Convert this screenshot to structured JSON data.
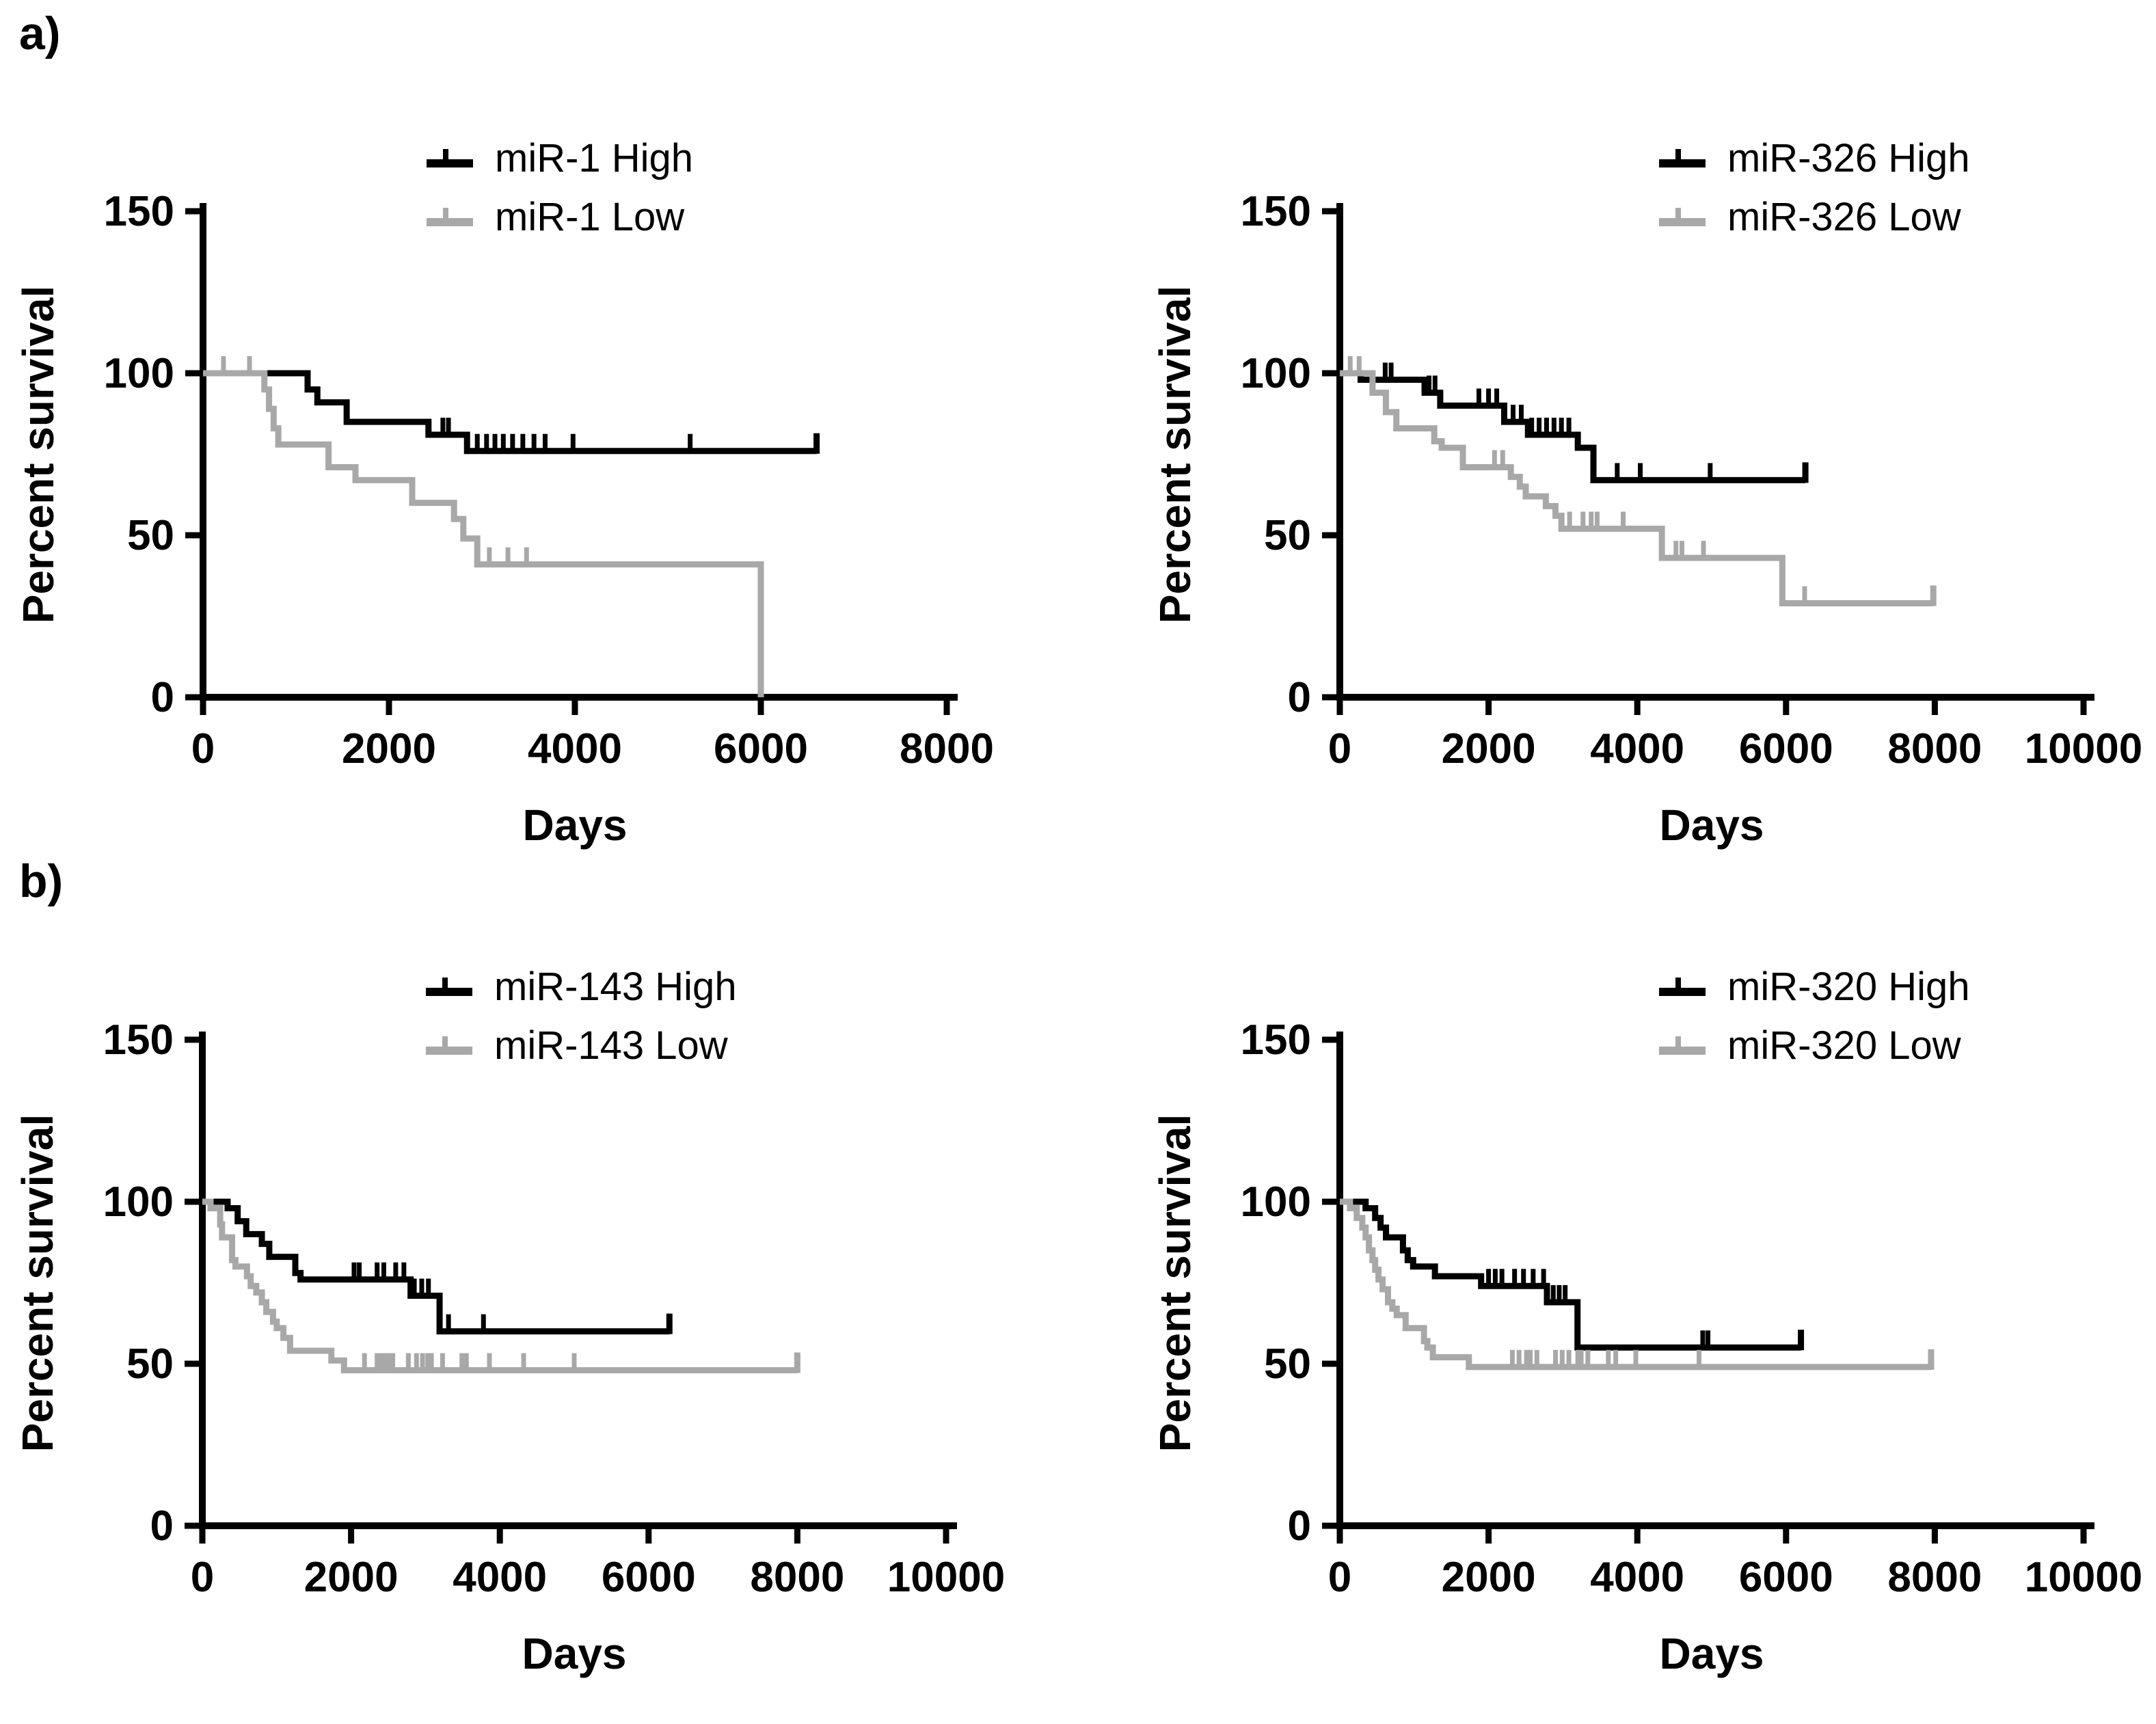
{
  "figure": {
    "panel_a_label": "a)",
    "panel_b_label": "b)",
    "background_color": "#ffffff",
    "high_color": "#000000",
    "low_color": "#a8a8a8"
  },
  "chart_data": [
    {
      "type": "line",
      "subtype": "kaplan-meier-step",
      "panel": "a",
      "xlabel": "Days",
      "ylabel": "Percent survival",
      "xlim": [
        0,
        8000
      ],
      "ylim": [
        0,
        150
      ],
      "xticks": [
        0,
        2000,
        4000,
        6000,
        8000
      ],
      "yticks": [
        0,
        50,
        100,
        150
      ],
      "grid": false,
      "legend_position": "top-right",
      "series": [
        {
          "name": "miR-1 High",
          "color": "#000000",
          "steps": [
            [
              0,
              100
            ],
            [
              1125,
              95
            ],
            [
              1230,
              91
            ],
            [
              1545,
              85
            ],
            [
              2425,
              81
            ],
            [
              2840,
              76
            ]
          ],
          "end": 6600,
          "terminal_censor": true,
          "censors": [
            [
              2580,
              81
            ],
            [
              2640,
              81
            ],
            [
              2950,
              76
            ],
            [
              3050,
              76
            ],
            [
              3140,
              76
            ],
            [
              3230,
              76
            ],
            [
              3330,
              76
            ],
            [
              3440,
              76
            ],
            [
              3560,
              76
            ],
            [
              3680,
              76
            ],
            [
              3980,
              76
            ],
            [
              5240,
              76
            ]
          ]
        },
        {
          "name": "miR-1 Low",
          "color": "#a8a8a8",
          "steps": [
            [
              0,
              100
            ],
            [
              660,
              95
            ],
            [
              710,
              89
            ],
            [
              760,
              83
            ],
            [
              810,
              78
            ],
            [
              1350,
              71
            ],
            [
              1640,
              67
            ],
            [
              2250,
              60
            ],
            [
              2700,
              55
            ],
            [
              2800,
              49
            ],
            [
              2950,
              41
            ],
            [
              6000,
              0
            ]
          ],
          "end": 6000,
          "terminal_censor": false,
          "censors": [
            [
              220,
              100
            ],
            [
              500,
              100
            ],
            [
              3080,
              41
            ],
            [
              3280,
              41
            ],
            [
              3480,
              41
            ]
          ]
        }
      ]
    },
    {
      "type": "line",
      "subtype": "kaplan-meier-step",
      "panel": "a",
      "xlabel": "Days",
      "ylabel": "Percent survival",
      "xlim": [
        0,
        10000
      ],
      "ylim": [
        0,
        150
      ],
      "xticks": [
        0,
        2000,
        4000,
        6000,
        8000,
        10000
      ],
      "yticks": [
        0,
        50,
        100,
        150
      ],
      "grid": false,
      "legend_position": "top-right",
      "series": [
        {
          "name": "miR-326 High",
          "color": "#000000",
          "steps": [
            [
              0,
              100
            ],
            [
              280,
              98
            ],
            [
              1140,
              94
            ],
            [
              1350,
              90
            ],
            [
              2210,
              85
            ],
            [
              2530,
              81
            ],
            [
              3200,
              77
            ],
            [
              3410,
              67
            ]
          ],
          "end": 6260,
          "terminal_censor": true,
          "censors": [
            [
              610,
              98
            ],
            [
              690,
              98
            ],
            [
              1200,
              94
            ],
            [
              1280,
              94
            ],
            [
              1870,
              90
            ],
            [
              2000,
              90
            ],
            [
              2110,
              90
            ],
            [
              2330,
              85
            ],
            [
              2440,
              85
            ],
            [
              2580,
              81
            ],
            [
              2680,
              81
            ],
            [
              2780,
              81
            ],
            [
              2880,
              81
            ],
            [
              2980,
              81
            ],
            [
              3080,
              81
            ],
            [
              3730,
              67
            ],
            [
              4040,
              67
            ],
            [
              4980,
              67
            ]
          ]
        },
        {
          "name": "miR-326 Low",
          "color": "#a8a8a8",
          "steps": [
            [
              0,
              100
            ],
            [
              440,
              94
            ],
            [
              620,
              88
            ],
            [
              760,
              83
            ],
            [
              1270,
              79
            ],
            [
              1370,
              77
            ],
            [
              1655,
              71
            ],
            [
              2300,
              68
            ],
            [
              2420,
              65
            ],
            [
              2500,
              62
            ],
            [
              2770,
              59
            ],
            [
              2900,
              56
            ],
            [
              2980,
              52
            ],
            [
              4330,
              43
            ],
            [
              5950,
              29
            ]
          ],
          "end": 7980,
          "terminal_censor": true,
          "censors": [
            [
              140,
              100
            ],
            [
              260,
              100
            ],
            [
              2080,
              71
            ],
            [
              2190,
              71
            ],
            [
              3090,
              52
            ],
            [
              3270,
              52
            ],
            [
              3380,
              52
            ],
            [
              3460,
              52
            ],
            [
              3810,
              52
            ],
            [
              4520,
              43
            ],
            [
              4600,
              43
            ],
            [
              4890,
              43
            ],
            [
              6250,
              29
            ]
          ]
        }
      ]
    },
    {
      "type": "line",
      "subtype": "kaplan-meier-step",
      "panel": "b",
      "xlabel": "Days",
      "ylabel": "Percent survival",
      "xlim": [
        0,
        10000
      ],
      "ylim": [
        0,
        150
      ],
      "xticks": [
        0,
        2000,
        4000,
        6000,
        8000,
        10000
      ],
      "yticks": [
        0,
        50,
        100,
        150
      ],
      "grid": false,
      "legend_position": "top-right",
      "series": [
        {
          "name": "miR-143 High",
          "color": "#000000",
          "steps": [
            [
              0,
              100
            ],
            [
              340,
              98
            ],
            [
              475,
              94
            ],
            [
              590,
              90
            ],
            [
              800,
              87
            ],
            [
              900,
              83
            ],
            [
              1250,
              78
            ],
            [
              1320,
              76
            ],
            [
              2800,
              71
            ],
            [
              3190,
              60
            ]
          ],
          "end": 6280,
          "terminal_censor": true,
          "censors": [
            [
              2040,
              76
            ],
            [
              2110,
              76
            ],
            [
              2350,
              76
            ],
            [
              2440,
              76
            ],
            [
              2600,
              76
            ],
            [
              2710,
              76
            ],
            [
              2850,
              71
            ],
            [
              2950,
              71
            ],
            [
              3040,
              71
            ],
            [
              3310,
              60
            ],
            [
              3780,
              60
            ]
          ]
        },
        {
          "name": "miR-143 Low",
          "color": "#a8a8a8",
          "steps": [
            [
              0,
              100
            ],
            [
              110,
              98
            ],
            [
              240,
              93
            ],
            [
              265,
              89
            ],
            [
              400,
              82
            ],
            [
              445,
              80
            ],
            [
              600,
              77
            ],
            [
              650,
              74
            ],
            [
              725,
              72
            ],
            [
              800,
              69
            ],
            [
              860,
              66
            ],
            [
              950,
              63
            ],
            [
              1000,
              61
            ],
            [
              1090,
              58
            ],
            [
              1180,
              54
            ],
            [
              1735,
              51
            ],
            [
              1905,
              48
            ]
          ],
          "end": 8000,
          "terminal_censor": true,
          "censors": [
            [
              2180,
              48
            ],
            [
              2350,
              48
            ],
            [
              2400,
              48
            ],
            [
              2460,
              48
            ],
            [
              2510,
              48
            ],
            [
              2560,
              48
            ],
            [
              2770,
              48
            ],
            [
              2880,
              48
            ],
            [
              2960,
              48
            ],
            [
              3030,
              48
            ],
            [
              3080,
              48
            ],
            [
              3230,
              48
            ],
            [
              3490,
              48
            ],
            [
              3550,
              48
            ],
            [
              3860,
              48
            ],
            [
              4320,
              48
            ],
            [
              5000,
              48
            ]
          ]
        }
      ]
    },
    {
      "type": "line",
      "subtype": "kaplan-meier-step",
      "panel": "b",
      "xlabel": "Days",
      "ylabel": "Percent survival",
      "xlim": [
        0,
        10000
      ],
      "ylim": [
        0,
        150
      ],
      "xticks": [
        0,
        2000,
        4000,
        6000,
        8000,
        10000
      ],
      "yticks": [
        0,
        50,
        100,
        150
      ],
      "grid": false,
      "legend_position": "top-right",
      "series": [
        {
          "name": "miR-320 High",
          "color": "#000000",
          "steps": [
            [
              0,
              100
            ],
            [
              347,
              98
            ],
            [
              475,
              95
            ],
            [
              548,
              92
            ],
            [
              621,
              89
            ],
            [
              849,
              85
            ],
            [
              913,
              82
            ],
            [
              986,
              80
            ],
            [
              1279,
              77
            ],
            [
              1900,
              74
            ],
            [
              2785,
              69
            ],
            [
              3196,
              55
            ]
          ],
          "end": 6200,
          "terminal_censor": true,
          "censors": [
            [
              2000,
              74
            ],
            [
              2090,
              74
            ],
            [
              2180,
              74
            ],
            [
              2350,
              74
            ],
            [
              2470,
              74
            ],
            [
              2600,
              74
            ],
            [
              2740,
              74
            ],
            [
              2870,
              69
            ],
            [
              2950,
              69
            ],
            [
              3030,
              69
            ],
            [
              4880,
              55
            ],
            [
              4950,
              55
            ]
          ]
        },
        {
          "name": "miR-320 Low",
          "color": "#a8a8a8",
          "steps": [
            [
              0,
              100
            ],
            [
              137,
              98
            ],
            [
              228,
              95
            ],
            [
              302,
              92
            ],
            [
              347,
              89
            ],
            [
              392,
              85
            ],
            [
              439,
              82
            ],
            [
              475,
              79
            ],
            [
              520,
              76
            ],
            [
              575,
              73
            ],
            [
              648,
              69
            ],
            [
              706,
              67
            ],
            [
              765,
              65
            ],
            [
              885,
              61
            ],
            [
              1132,
              57
            ],
            [
              1177,
              55
            ],
            [
              1251,
              52
            ],
            [
              1735,
              49
            ]
          ],
          "end": 7950,
          "terminal_censor": true,
          "censors": [
            [
              2320,
              49
            ],
            [
              2410,
              49
            ],
            [
              2510,
              49
            ],
            [
              2560,
              49
            ],
            [
              2650,
              49
            ],
            [
              2900,
              49
            ],
            [
              2990,
              49
            ],
            [
              3080,
              49
            ],
            [
              3200,
              49
            ],
            [
              3245,
              49
            ],
            [
              3335,
              49
            ],
            [
              3610,
              49
            ],
            [
              3710,
              49
            ],
            [
              3980,
              49
            ],
            [
              4830,
              49
            ]
          ]
        }
      ]
    }
  ]
}
